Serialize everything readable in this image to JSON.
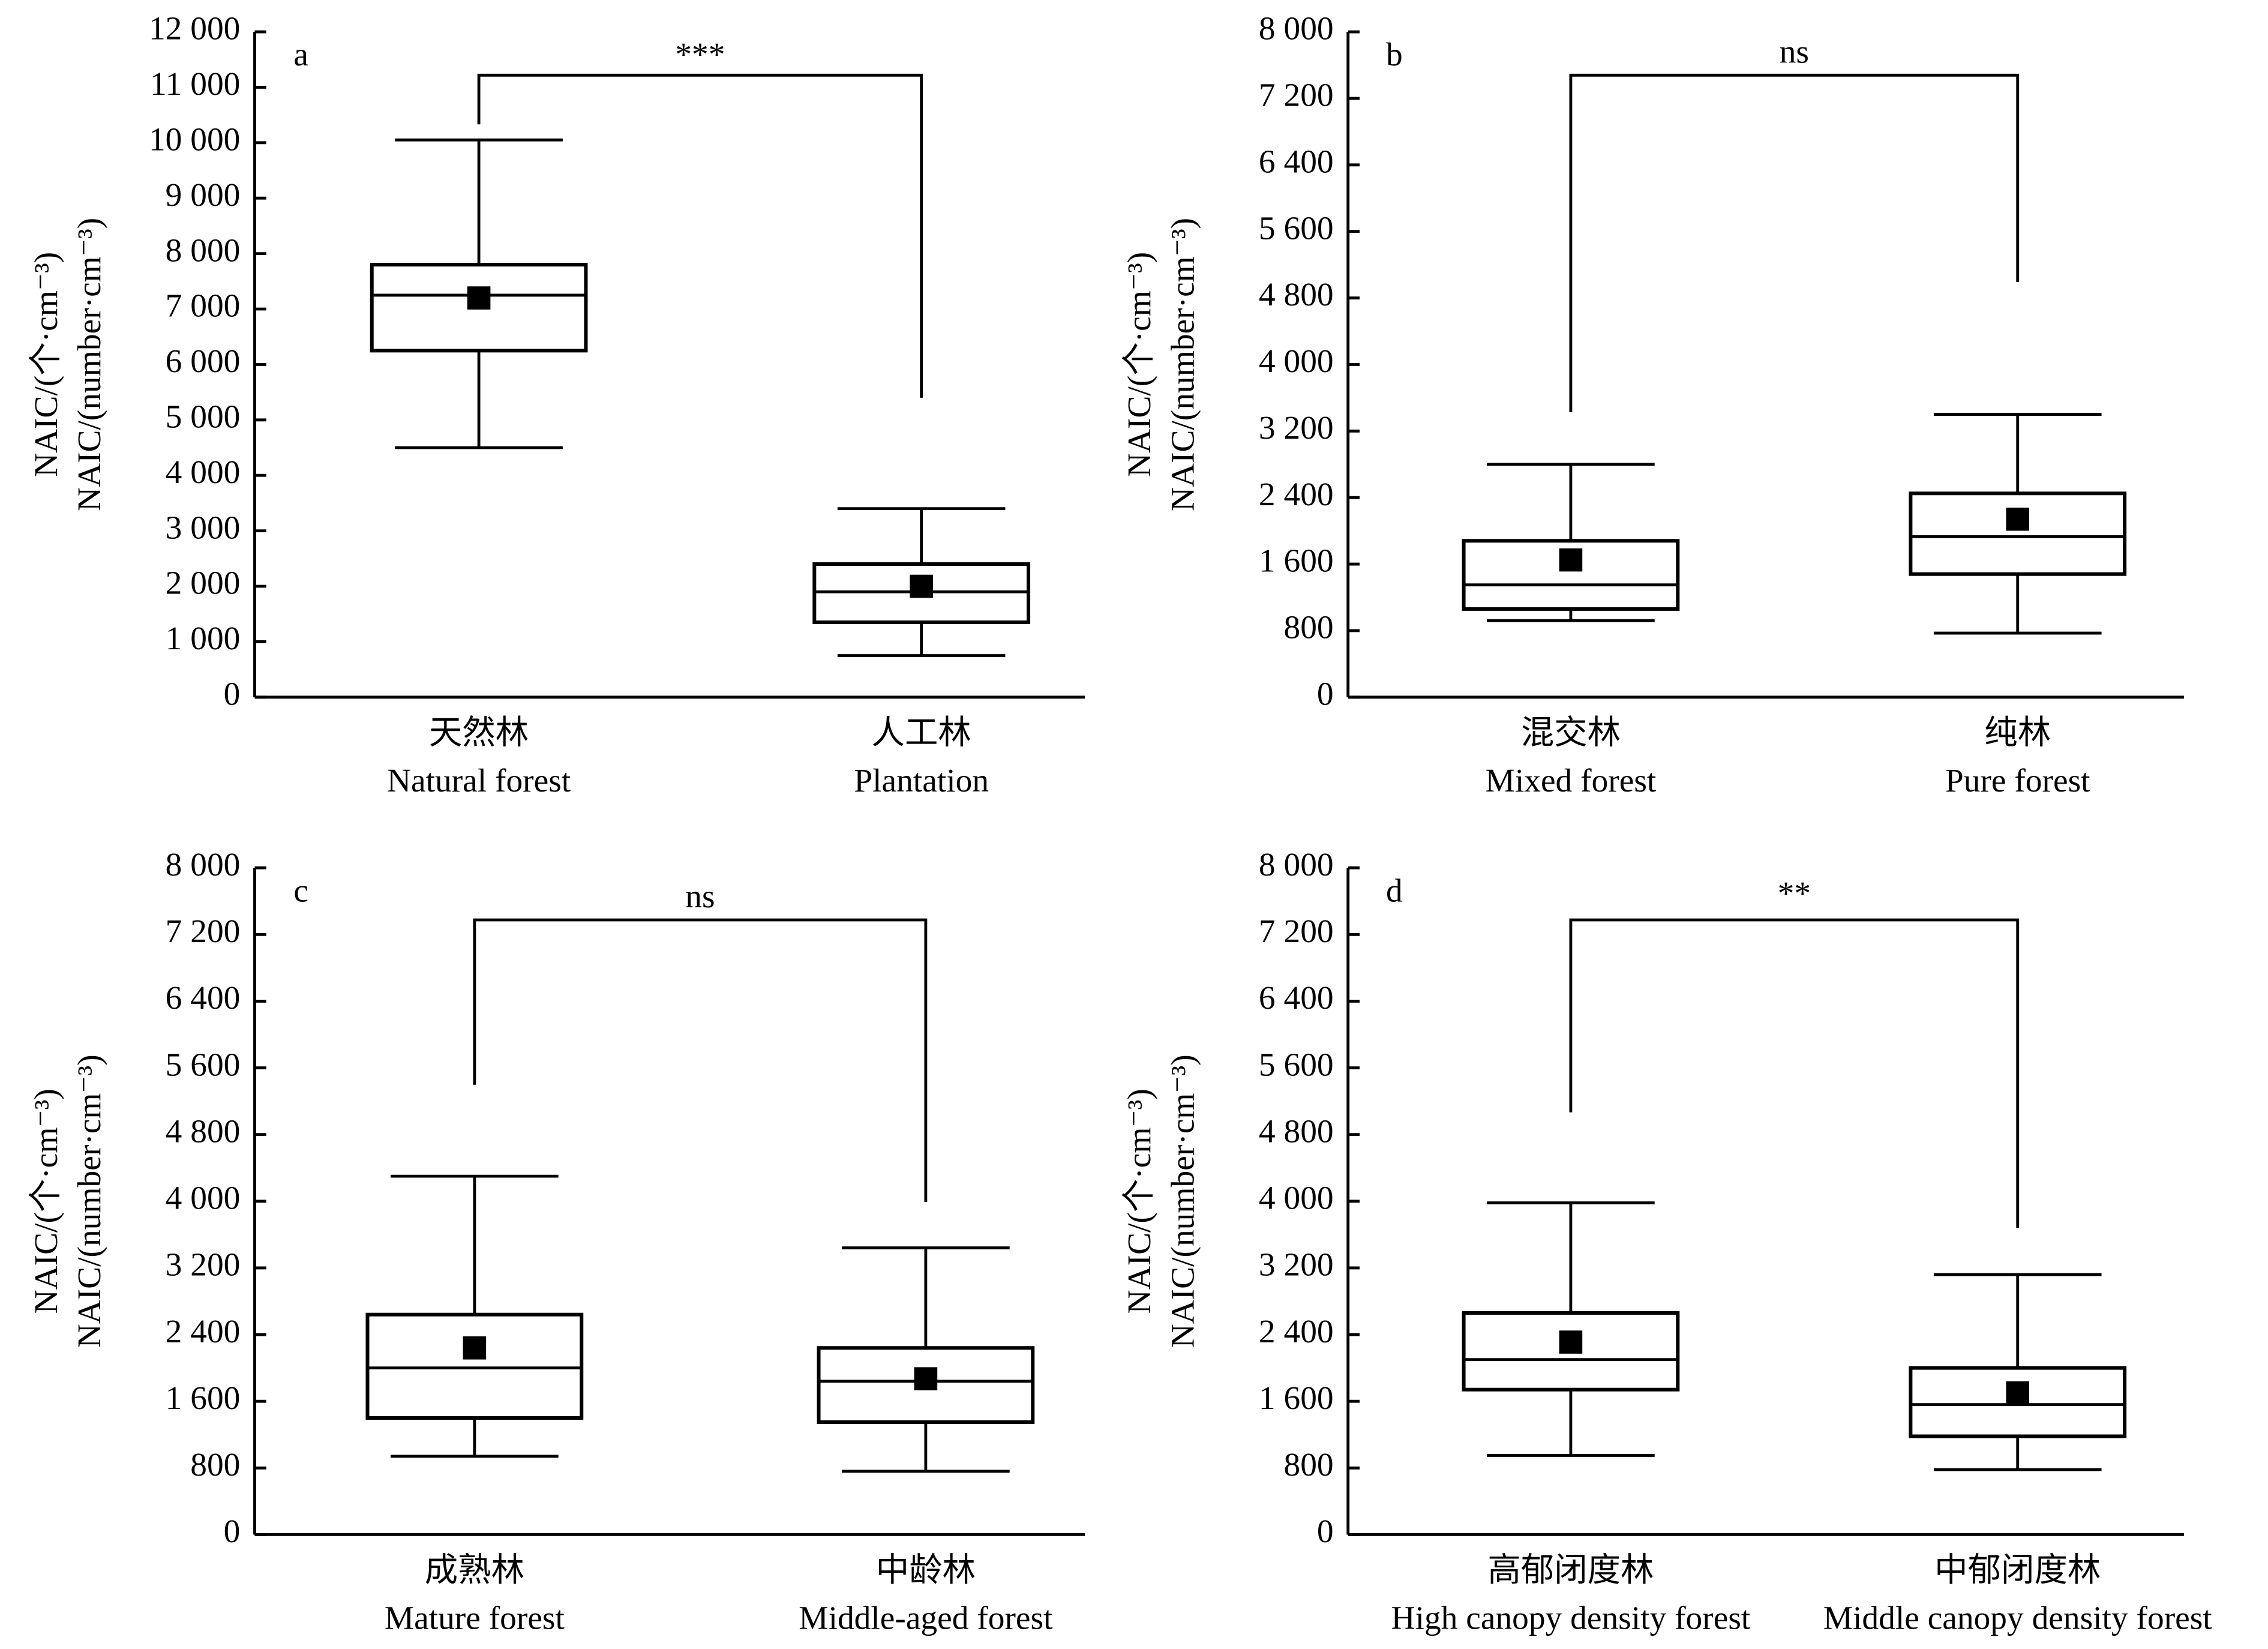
{
  "chart_data": [
    {
      "type": "box",
      "label": "a",
      "significance": "***",
      "ylabel": [
        "NAIC/(个·cm⁻³)",
        "NAIC/(number·cm⁻³)"
      ],
      "categories": [
        "天然林",
        "人工林"
      ],
      "categories_en": [
        "Natural forest",
        "Plantation"
      ],
      "boxes": [
        {
          "whislo": 4500,
          "q1": 6250,
          "med": 7250,
          "q3": 7800,
          "whishi": 10050,
          "mean": 7200
        },
        {
          "whislo": 750,
          "q1": 1350,
          "med": 1900,
          "q3": 2400,
          "whishi": 3400,
          "mean": 2000
        }
      ],
      "ylim": [
        0,
        12000
      ],
      "yticks": [
        0,
        {
          "value": 1000,
          "label": "1 000"
        },
        {
          "value": 2000,
          "label": "2 000"
        },
        {
          "value": 3000,
          "label": "3 000"
        },
        {
          "value": 4000,
          "label": "4 000"
        },
        {
          "value": 5000,
          "label": "5 000"
        },
        {
          "value": 6000,
          "label": "6 000"
        },
        {
          "value": 7000,
          "label": "7 000"
        },
        {
          "value": 8000,
          "label": "8 000"
        },
        {
          "value": 9000,
          "label": "9 000"
        },
        {
          "value": 10000,
          "label": "10 000"
        },
        {
          "value": 11000,
          "label": "11 000"
        },
        {
          "value": 12000,
          "label": "12 000"
        }
      ]
    },
    {
      "type": "box",
      "label": "b",
      "significance": "ns",
      "ylabel": [
        "NAIC/(个·cm⁻³)",
        "NAIC/(number·cm⁻³)"
      ],
      "categories": [
        "混交林",
        "纯林"
      ],
      "categories_en": [
        "Mixed forest",
        "Pure forest"
      ],
      "boxes": [
        {
          "whislo": 920,
          "q1": 1060,
          "med": 1350,
          "q3": 1880,
          "whishi": 2800,
          "mean": 1650
        },
        {
          "whislo": 770,
          "q1": 1480,
          "med": 1930,
          "q3": 2450,
          "whishi": 3400,
          "mean": 2140
        }
      ],
      "ylim": [
        0,
        8000
      ],
      "yticks": [
        0,
        800,
        {
          "value": 1600,
          "label": "1 600"
        },
        {
          "value": 2400,
          "label": "2 400"
        },
        {
          "value": 3200,
          "label": "3 200"
        },
        {
          "value": 4000,
          "label": "4 000"
        },
        {
          "value": 4800,
          "label": "4 800"
        },
        {
          "value": 5600,
          "label": "5 600"
        },
        {
          "value": 6400,
          "label": "6 400"
        },
        {
          "value": 7200,
          "label": "7 200"
        },
        {
          "value": 8000,
          "label": "8 000"
        }
      ]
    },
    {
      "type": "box",
      "label": "c",
      "significance": "ns",
      "ylabel": [
        "NAIC/(个·cm⁻³)",
        "NAIC/(number·cm⁻³)"
      ],
      "categories": [
        "成熟林",
        "中龄林"
      ],
      "categories_en": [
        "Mature forest",
        "Middle-aged forest"
      ],
      "boxes": [
        {
          "whislo": 940,
          "q1": 1400,
          "med": 2000,
          "q3": 2640,
          "whishi": 4300,
          "mean": 2240
        },
        {
          "whislo": 760,
          "q1": 1350,
          "med": 1840,
          "q3": 2240,
          "whishi": 3440,
          "mean": 1870
        }
      ],
      "ylim": [
        0,
        8000
      ],
      "yticks": [
        0,
        800,
        {
          "value": 1600,
          "label": "1 600"
        },
        {
          "value": 2400,
          "label": "2 400"
        },
        {
          "value": 3200,
          "label": "3 200"
        },
        {
          "value": 4000,
          "label": "4 000"
        },
        {
          "value": 4800,
          "label": "4 800"
        },
        {
          "value": 5600,
          "label": "5 600"
        },
        {
          "value": 6400,
          "label": "6 400"
        },
        {
          "value": 7200,
          "label": "7 200"
        },
        {
          "value": 8000,
          "label": "8 000"
        }
      ]
    },
    {
      "type": "box",
      "label": "d",
      "significance": "**",
      "ylabel": [
        "NAIC/(个·cm⁻³)",
        "NAIC/(number·cm⁻³)"
      ],
      "categories": [
        "高郁闭度林",
        "中郁闭度林"
      ],
      "categories_en": [
        "High canopy density forest",
        "Middle canopy density forest"
      ],
      "boxes": [
        {
          "whislo": 950,
          "q1": 1740,
          "med": 2100,
          "q3": 2660,
          "whishi": 3980,
          "mean": 2310
        },
        {
          "whislo": 780,
          "q1": 1180,
          "med": 1560,
          "q3": 2000,
          "whishi": 3120,
          "mean": 1700
        }
      ],
      "ylim": [
        0,
        8000
      ],
      "yticks": [
        0,
        800,
        {
          "value": 1600,
          "label": "1 600"
        },
        {
          "value": 2400,
          "label": "2 400"
        },
        {
          "value": 3200,
          "label": "3 200"
        },
        {
          "value": 4000,
          "label": "4 000"
        },
        {
          "value": 4800,
          "label": "4 800"
        },
        {
          "value": 5600,
          "label": "5 600"
        },
        {
          "value": 6400,
          "label": "6 400"
        },
        {
          "value": 7200,
          "label": "7 200"
        },
        {
          "value": 8000,
          "label": "8 000"
        }
      ]
    }
  ]
}
